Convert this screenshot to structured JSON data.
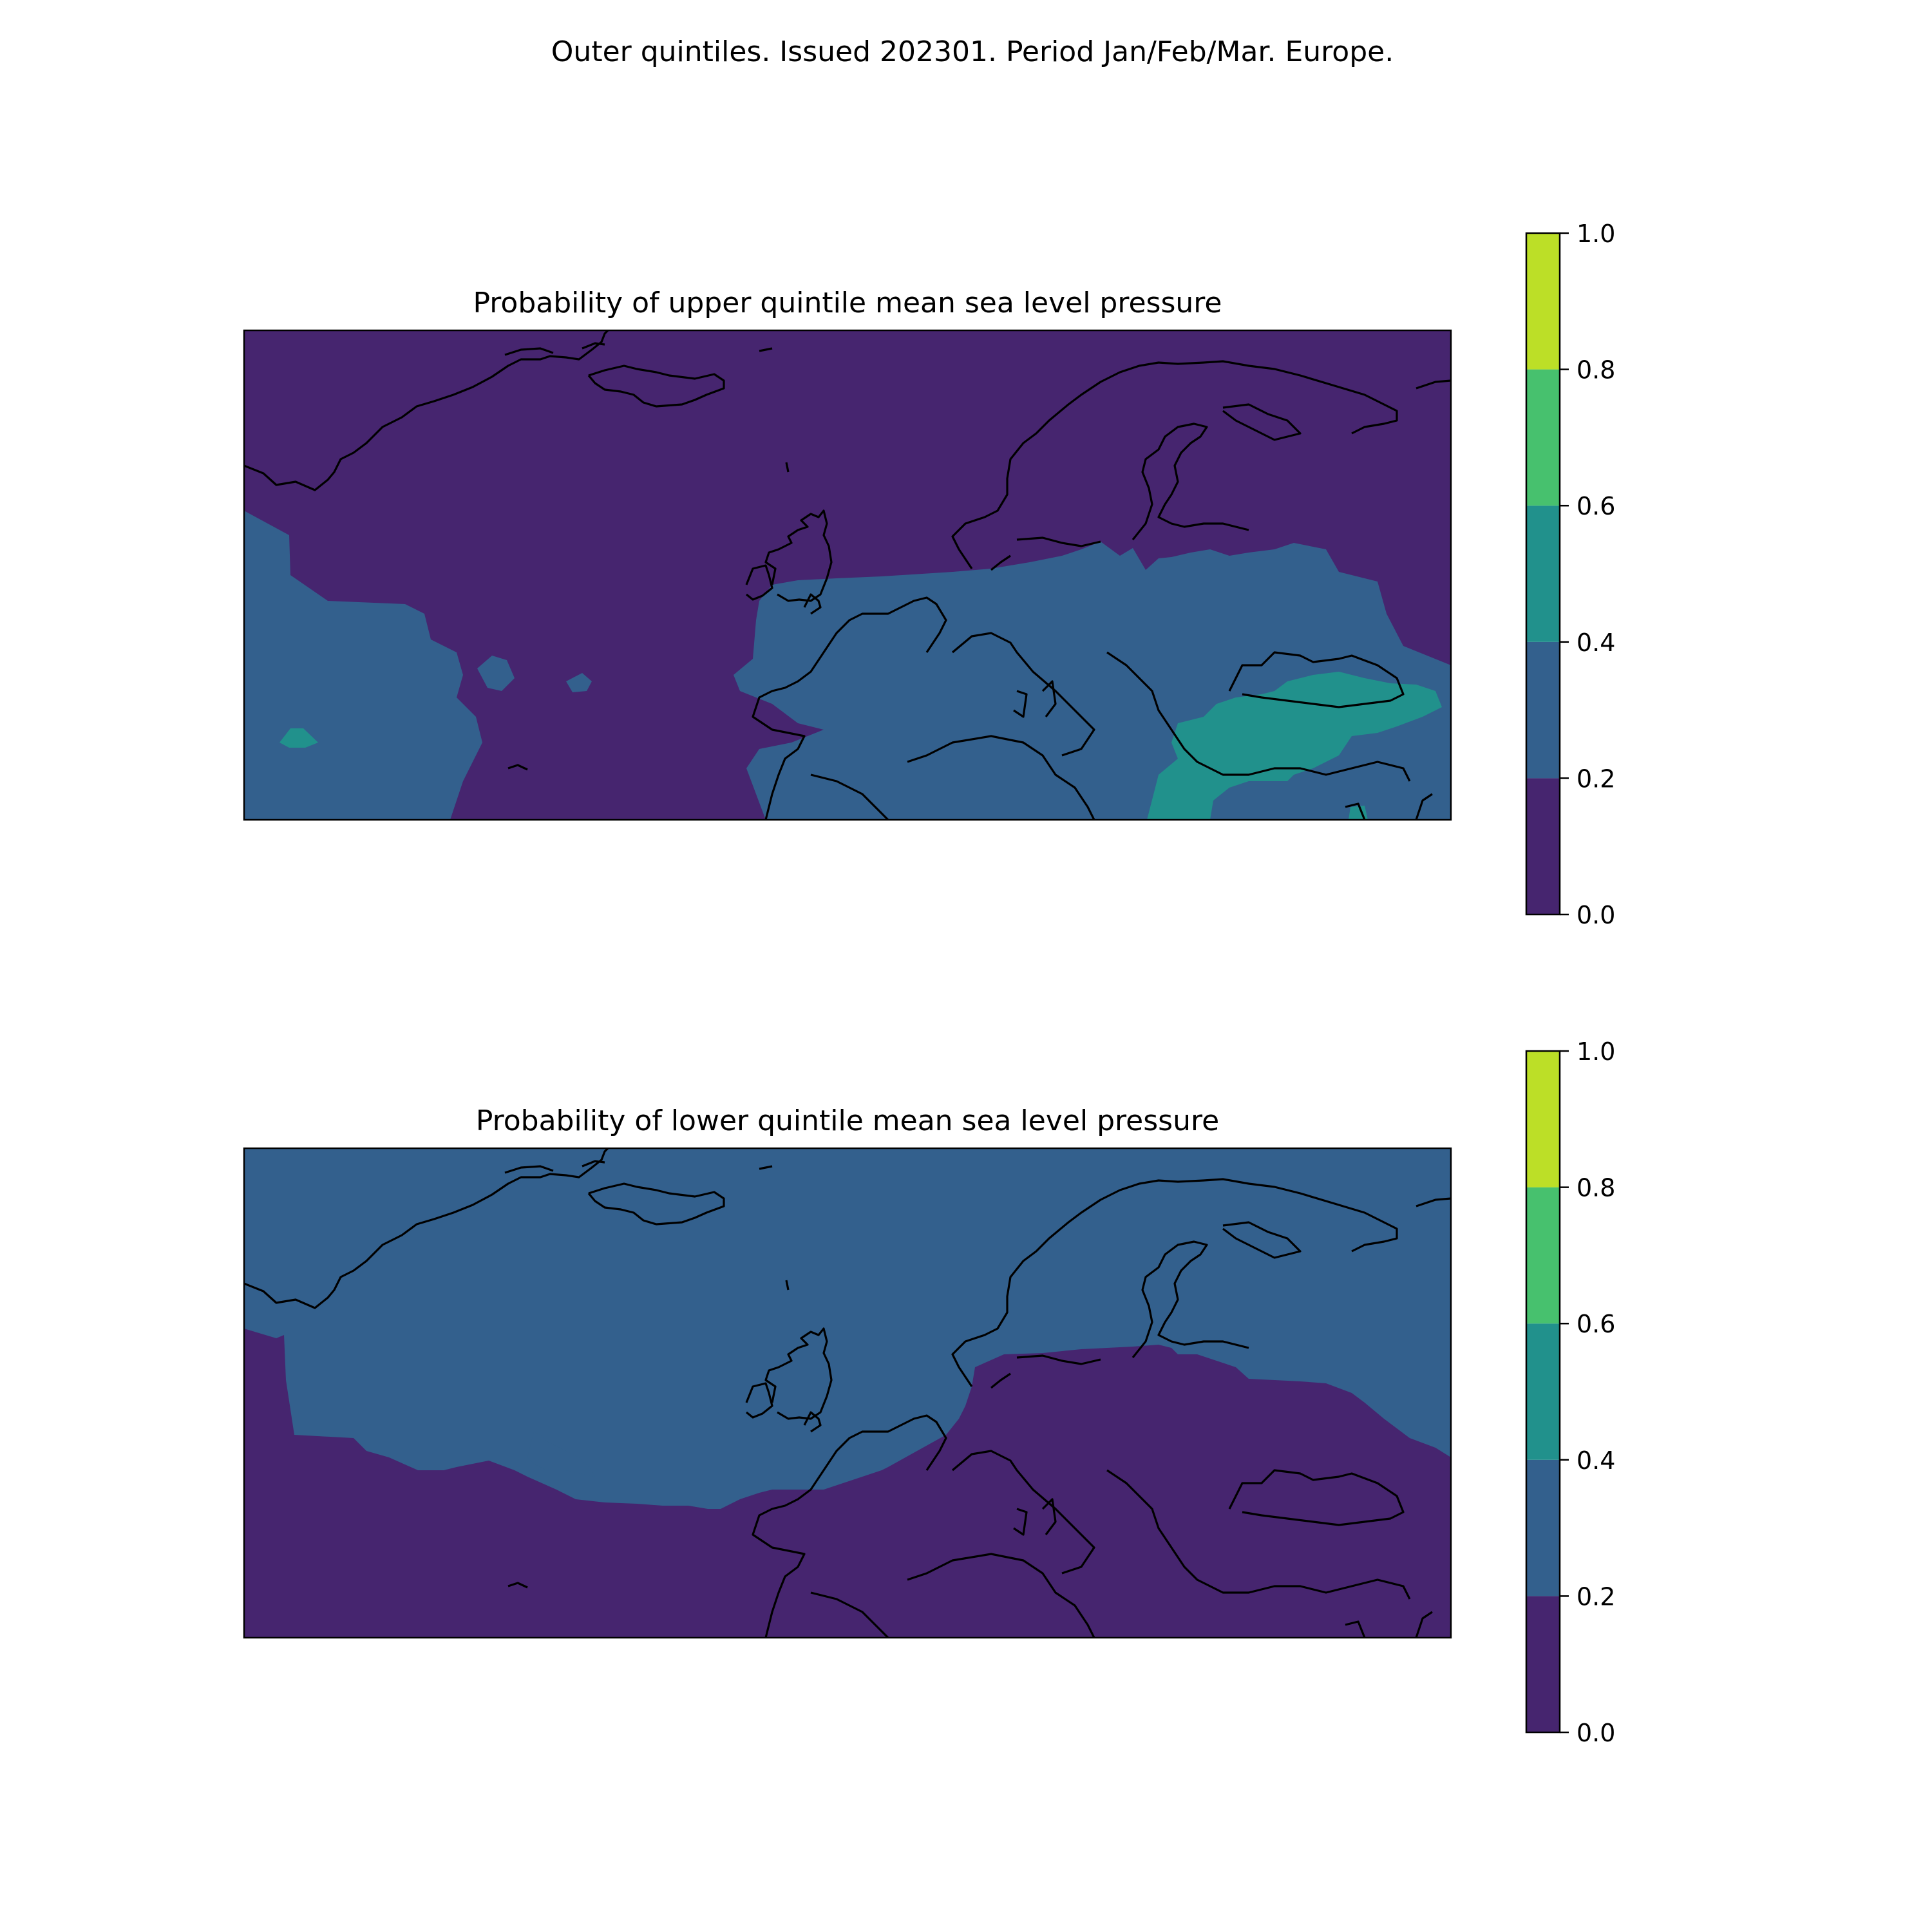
{
  "figure": {
    "suptitle": "Outer quintiles. Issued 202301. Period Jan/Feb/Mar. Europe."
  },
  "colors": {
    "levels": [
      "#440154",
      "#3b528b",
      "#21918c",
      "#5ec962",
      "#fde725"
    ],
    "bands": [
      "#46256f",
      "#33608d",
      "#21918c",
      "#47c16e",
      "#bcdf27"
    ],
    "coastline": "#000000",
    "frame": "#000000"
  },
  "colorbar": {
    "ticks": [
      "0.0",
      "0.2",
      "0.4",
      "0.6",
      "0.8",
      "1.0"
    ],
    "bounds": [
      0.0,
      0.2,
      0.4,
      0.6,
      0.8,
      1.0
    ]
  },
  "chart_data": [
    {
      "type": "heatmap",
      "title": "Probability of upper quintile mean sea level pressure",
      "region": "Europe",
      "projection": "PlateCarree",
      "background_band": [
        0.0,
        0.2
      ],
      "regions": [
        {
          "band": [
            0.2,
            0.4
          ],
          "area": "western and southwestern Atlantic"
        },
        {
          "band": [
            0.2,
            0.4
          ],
          "area": "central Europe, Mediterranean, Iberian coast"
        },
        {
          "band": [
            0.4,
            0.6
          ],
          "area": "Turkey, Black Sea, Aegean, eastern Mediterranean"
        },
        {
          "band": [
            0.4,
            0.6
          ],
          "area": "small patch south-west Atlantic"
        }
      ],
      "colorbar_range": [
        0.0,
        1.0
      ]
    },
    {
      "type": "heatmap",
      "title": "Probability of lower quintile mean sea level pressure",
      "region": "Europe",
      "projection": "PlateCarree",
      "background_band": [
        0.2,
        0.4
      ],
      "regions": [
        {
          "band": [
            0.0,
            0.2
          ],
          "area": "southern half: subtropical Atlantic, Iberia, Mediterranean, central and eastern Europe"
        }
      ],
      "colorbar_range": [
        0.0,
        1.0
      ]
    }
  ]
}
